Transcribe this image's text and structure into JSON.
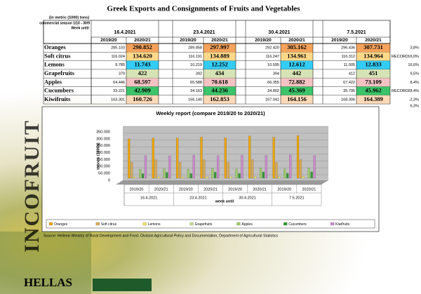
{
  "table": {
    "title": "Greek Exports and Consignments of Fruits and Vegetables",
    "unit_note": "(in metric (1000) tons)",
    "season_note": "commercial season 1/10 - 30/9",
    "week_label": "Week until:",
    "weeks": [
      "16.4.2021",
      "23.4.2021",
      "30.4.2021",
      "7.5.2021"
    ],
    "columns": [
      "2019/20",
      "2020/21"
    ],
    "rows": [
      {
        "name": "Oranges",
        "color": "#f5a35c",
        "values": [
          "285.103",
          "290.852",
          "289.858",
          "297.997",
          "292.420",
          "305.162",
          "296.436",
          "307.731"
        ],
        "change": "3,8%"
      },
      {
        "name": "Soft citrus",
        "color": "#ffd98a",
        "values": [
          "116.024",
          "134.620",
          "116.191",
          "134.889",
          "116.247",
          "134.961",
          "116.312",
          "134.964"
        ],
        "note": "RECORD",
        "change": "16,0%"
      },
      {
        "name": "Lemons",
        "color": "#33ccf5",
        "values": [
          "9.785",
          "11.743",
          "10.219",
          "12.252",
          "10.595",
          "12.612",
          "11.005",
          "12.833"
        ],
        "change": "16,6%"
      },
      {
        "name": "Grapefruits",
        "color": "#d6e3b5",
        "values": [
          "379",
          "422",
          "392",
          "434",
          "394",
          "442",
          "412",
          "451"
        ],
        "change": "9,5%"
      },
      {
        "name": "Apples",
        "color": "#f4c2c2",
        "values": [
          "64.446",
          "68.597",
          "65.588",
          "70.618",
          "66.355",
          "72.882",
          "67.422",
          "73.109"
        ],
        "change": "8,4%"
      },
      {
        "name": "Cucumbers",
        "color": "#3cc46a",
        "values": [
          "33.221",
          "42.909",
          "34.163",
          "44.236",
          "34.802",
          "45.369",
          "35.795",
          "45.962"
        ],
        "note": "RECORD",
        "change": "28,4%"
      },
      {
        "name": "Kiwifruits",
        "color": "#fcd9b8",
        "values": [
          "163.301",
          "160.726",
          "166.140",
          "162.853",
          "167.041",
          "164.156",
          "168.306",
          "164.389"
        ],
        "change": "-2,3%"
      }
    ],
    "total_change": "6,3%"
  },
  "chart_data": {
    "type": "bar",
    "title": "Weekly report (compare 2019/20 to 2020/21)",
    "y_label": "tonnes (1000s)",
    "x_label": "week until",
    "categories": [
      "2019/20",
      "2020/21",
      "2019/20",
      "2020/21",
      "2019/20",
      "2020/21",
      "2019/20",
      "2020/21"
    ],
    "category_groups": [
      "16.4.2021",
      "23.4.2021",
      "30.4.2021",
      "7.5.2021"
    ],
    "series": [
      {
        "name": "Oranges",
        "color": "#f0a400",
        "values": [
          285103,
          290852,
          289858,
          297997,
          292420,
          305162,
          296436,
          307731
        ]
      },
      {
        "name": "Soft citrus",
        "color": "#d9aa55",
        "values": [
          116024,
          134620,
          116191,
          134889,
          116247,
          134961,
          116312,
          134964
        ]
      },
      {
        "name": "Lemons",
        "color": "#f2e266",
        "values": [
          9785,
          11743,
          10219,
          12252,
          10595,
          12612,
          11005,
          12833
        ]
      },
      {
        "name": "Grapefruits",
        "color": "#c4dc94",
        "values": [
          379,
          422,
          392,
          434,
          394,
          442,
          412,
          451
        ]
      },
      {
        "name": "Apples",
        "color": "#9ccc66",
        "values": [
          64446,
          68597,
          65588,
          70618,
          66355,
          72882,
          67422,
          73109
        ]
      },
      {
        "name": "Cucumbers",
        "color": "#339933",
        "values": [
          33221,
          42909,
          34163,
          44236,
          34802,
          45369,
          35795,
          45962
        ]
      },
      {
        "name": "Kiwifruits",
        "color": "#cc88cc",
        "values": [
          163301,
          160726,
          166140,
          162853,
          167041,
          164156,
          168306,
          164389
        ]
      }
    ],
    "ylim": [
      0,
      350000
    ],
    "yticks": [
      0,
      {
        "value": 50000,
        "label": "50.000"
      },
      {
        "value": 100000,
        "label": "100.000"
      },
      {
        "value": 150000,
        "label": "150.000"
      },
      {
        "value": 200000,
        "label": "200.000"
      },
      {
        "value": 250000,
        "label": "250.000"
      },
      {
        "value": 300000,
        "label": "300.000"
      },
      {
        "value": 350000,
        "label": "350.000"
      }
    ],
    "legend": "bottom"
  },
  "source": "Source: Hellenic Ministry of Rural Development and Food- Division Agricultural Policy and Documentation, Department of Agricultural Statistics",
  "branding": {
    "vertical": "INCOFRUIT",
    "name": "HELLAS"
  }
}
